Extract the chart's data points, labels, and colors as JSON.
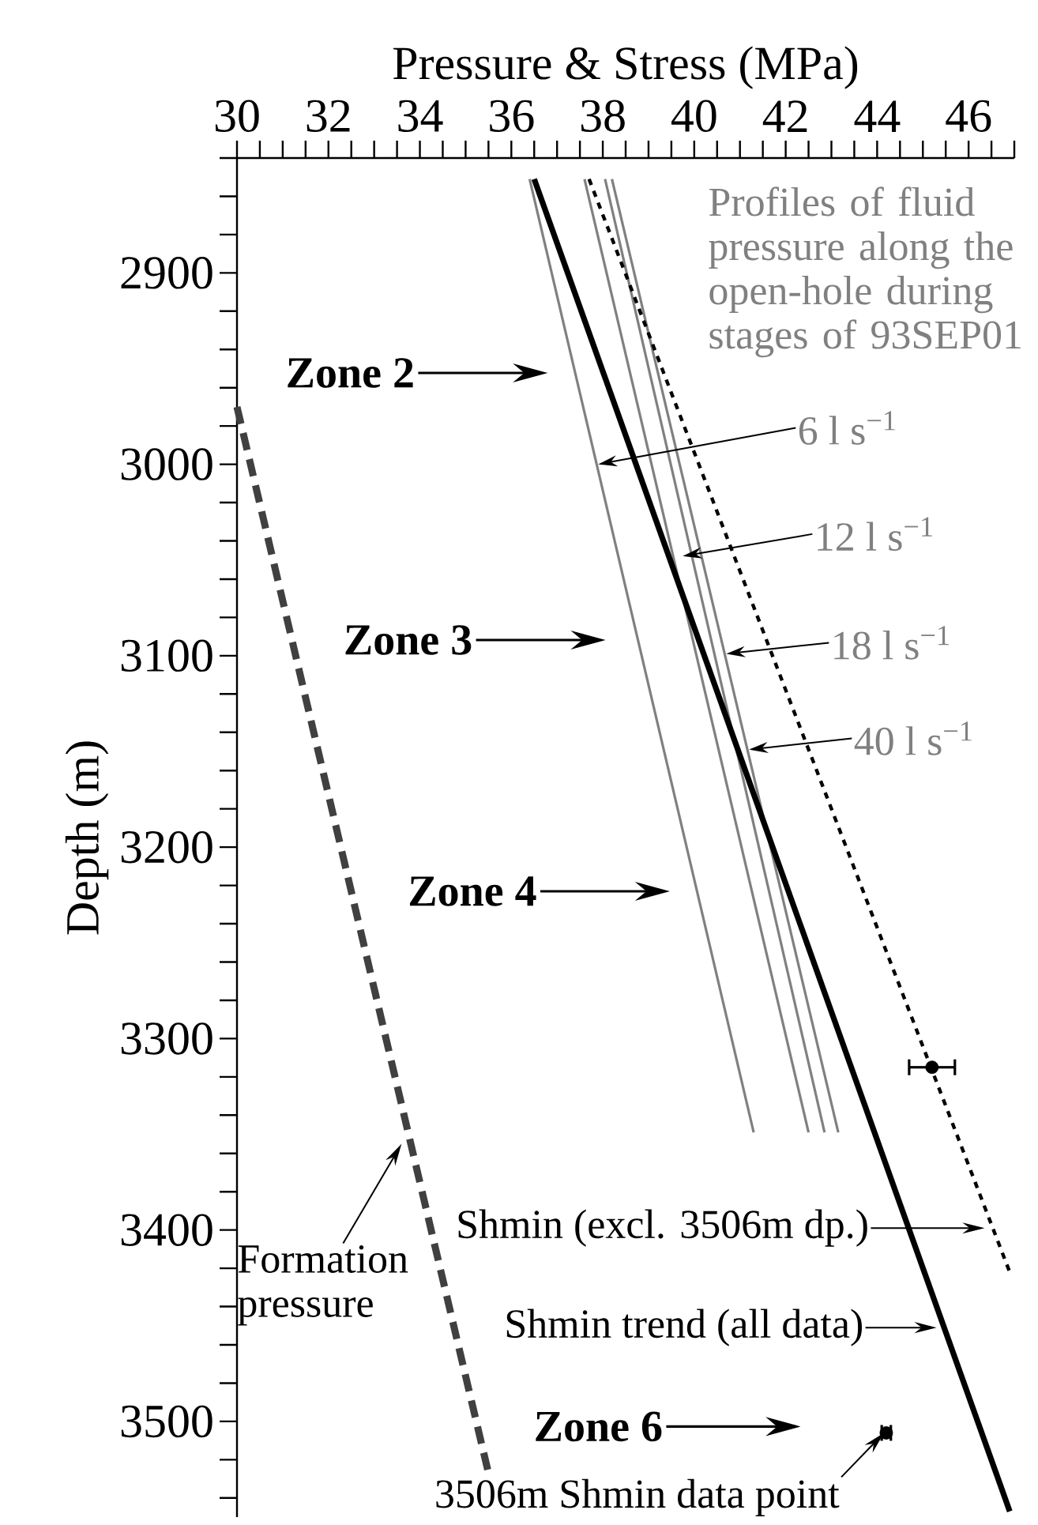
{
  "chart_data": {
    "type": "line",
    "xlabel": "Pressure & Stress (MPa)",
    "ylabel": "Depth (m)",
    "xlim": [
      30,
      47
    ],
    "ylim": [
      3550,
      2840
    ],
    "xticks": [
      30,
      {
        "value": 30.5,
        "label": null
      },
      {
        "value": 31,
        "label": null
      },
      {
        "value": 31.5,
        "label": null
      },
      32,
      {
        "value": 32.5,
        "label": null
      },
      {
        "value": 33,
        "label": null
      },
      {
        "value": 33.5,
        "label": null
      },
      34,
      {
        "value": 34.5,
        "label": null
      },
      {
        "value": 35,
        "label": null
      },
      {
        "value": 35.5,
        "label": null
      },
      36,
      {
        "value": 36.5,
        "label": null
      },
      {
        "value": 37,
        "label": null
      },
      {
        "value": 37.5,
        "label": null
      },
      38,
      {
        "value": 38.5,
        "label": null
      },
      {
        "value": 39,
        "label": null
      },
      {
        "value": 39.5,
        "label": null
      },
      40,
      {
        "value": 40.5,
        "label": null
      },
      {
        "value": 41,
        "label": null
      },
      {
        "value": 41.5,
        "label": null
      },
      42,
      {
        "value": 42.5,
        "label": null
      },
      {
        "value": 43,
        "label": null
      },
      {
        "value": 43.5,
        "label": null
      },
      44,
      {
        "value": 44.5,
        "label": null
      },
      {
        "value": 45,
        "label": null
      },
      {
        "value": 45.5,
        "label": null
      },
      46,
      {
        "value": 46.5,
        "label": null
      },
      {
        "value": 47,
        "label": null
      }
    ],
    "yticks": [
      {
        "value": 2840,
        "label": null
      },
      {
        "value": 2860,
        "label": null
      },
      {
        "value": 2880,
        "label": null
      },
      2900,
      {
        "value": 2920,
        "label": null
      },
      {
        "value": 2940,
        "label": null
      },
      {
        "value": 2960,
        "label": null
      },
      {
        "value": 2980,
        "label": null
      },
      3000,
      {
        "value": 3020,
        "label": null
      },
      {
        "value": 3040,
        "label": null
      },
      {
        "value": 3060,
        "label": null
      },
      {
        "value": 3080,
        "label": null
      },
      3100,
      {
        "value": 3120,
        "label": null
      },
      {
        "value": 3140,
        "label": null
      },
      {
        "value": 3160,
        "label": null
      },
      {
        "value": 3180,
        "label": null
      },
      3200,
      {
        "value": 3220,
        "label": null
      },
      {
        "value": 3240,
        "label": null
      },
      {
        "value": 3260,
        "label": null
      },
      {
        "value": 3280,
        "label": null
      },
      3300,
      {
        "value": 3320,
        "label": null
      },
      {
        "value": 3340,
        "label": null
      },
      {
        "value": 3360,
        "label": null
      },
      {
        "value": 3380,
        "label": null
      },
      3400,
      {
        "value": 3420,
        "label": null
      },
      {
        "value": 3440,
        "label": null
      },
      {
        "value": 3460,
        "label": null
      },
      {
        "value": 3480,
        "label": null
      },
      3500,
      {
        "value": 3520,
        "label": null
      },
      {
        "value": 3540,
        "label": null
      }
    ],
    "series": [
      {
        "color": "#808080",
        "line_style": "solid",
        "x": [
          36.4,
          41.3
        ],
        "values": [
          2851,
          3349
        ]
      },
      {
        "color": "#808080",
        "line_style": "solid",
        "x": [
          37.6,
          42.5
        ],
        "values": [
          2851,
          3349
        ]
      },
      {
        "color": "#808080",
        "line_style": "solid",
        "x": [
          38.05,
          42.85
        ],
        "values": [
          2851,
          3349
        ]
      },
      {
        "color": "#808080",
        "line_style": "solid",
        "x": [
          38.2,
          43.15
        ],
        "values": [
          2851,
          3349
        ]
      },
      {
        "color": "#000000",
        "line_style": "solid",
        "x": [
          36.5,
          46.9
        ],
        "values": [
          2851,
          3547
        ]
      },
      {
        "color": "#000000",
        "line_style": "dotted",
        "x": [
          37.7,
          46.9
        ],
        "values": [
          2851,
          3422
        ]
      },
      {
        "color": "#404040",
        "line_style": "dashed",
        "x": [
          30.0,
          35.5
        ],
        "values": [
          2970,
          3527
        ]
      },
      {
        "type": "scatter",
        "color": "#000000",
        "x": [
          45.2,
          44.2
        ],
        "values": [
          3315,
          3506
        ],
        "xerrors": [
          0.5,
          0.1
        ]
      }
    ],
    "annotations": [
      "Profiles of fluid pressure along the open-hole during stages of 93SEP01",
      {
        "text": "6 l s$^{−1}$",
        "x": 37.9,
        "y": 3000
      },
      {
        "text": "12 l s$^{−1}$",
        "x": 39.75,
        "y": 3048
      },
      {
        "text": "18 l s$^{−1}$",
        "x": 40.7,
        "y": 3099
      },
      {
        "text": "40 l s$^{−1}$",
        "x": 41.2,
        "y": 3149
      },
      "Zone 2",
      "Zone 3",
      "Zone 4",
      "Zone 6",
      {
        "text": "Formation pressure",
        "x": 33.6,
        "y": 3355
      },
      {
        "text": "Shmin (excl. 3506m dp.)",
        "x": 46.35,
        "y": 3399
      },
      {
        "text": "Shmin trend (all data)",
        "x": 45.3,
        "y": 3451
      },
      {
        "text": "3506m Shmin data point",
        "x": 44.15,
        "y": 3506
      }
    ]
  }
}
